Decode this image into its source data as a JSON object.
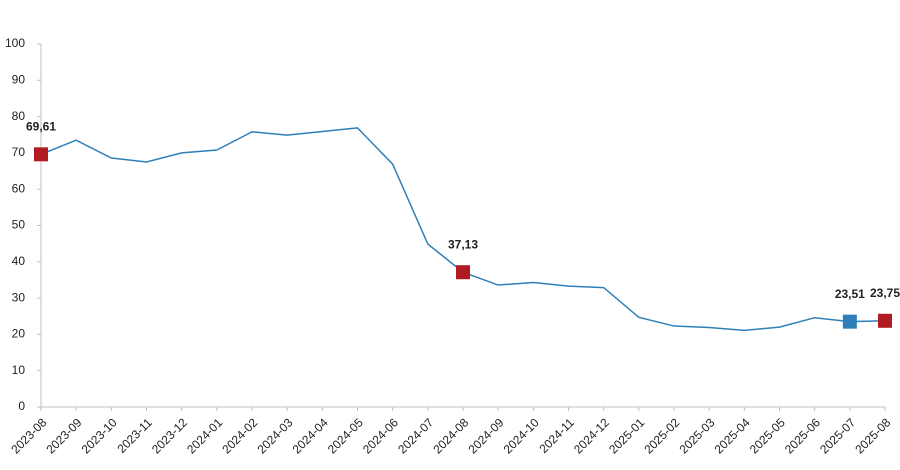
{
  "chart_data": {
    "type": "line",
    "categories": [
      "2023-08",
      "2023-09",
      "2023-10",
      "2023-11",
      "2023-12",
      "2024-01",
      "2024-02",
      "2024-03",
      "2024-04",
      "2024-05",
      "2024-06",
      "2024-07",
      "2024-08",
      "2024-09",
      "2024-10",
      "2024-11",
      "2024-12",
      "2025-01",
      "2025-02",
      "2025-03",
      "2025-04",
      "2025-05",
      "2025-06",
      "2025-07",
      "2025-08"
    ],
    "series": [
      {
        "color": "#2e7fb8",
        "values": [
          69.61,
          73.5,
          68.6,
          67.5,
          70.0,
          70.8,
          75.8,
          74.9,
          75.9,
          76.9,
          66.9,
          44.9,
          37.13,
          33.6,
          34.3,
          33.3,
          32.9,
          24.7,
          22.3,
          21.9,
          21.1,
          22.0,
          24.6,
          23.51,
          23.75
        ],
        "value_labels": [
          "69,61",
          null,
          null,
          null,
          null,
          null,
          null,
          null,
          null,
          null,
          null,
          null,
          "37,13",
          null,
          null,
          null,
          null,
          null,
          null,
          null,
          null,
          null,
          null,
          "23,51",
          "23,75"
        ],
        "marker_colors": [
          "#b01c22",
          null,
          null,
          null,
          null,
          null,
          null,
          null,
          null,
          null,
          null,
          null,
          "#b01c22",
          null,
          null,
          null,
          null,
          null,
          null,
          null,
          null,
          null,
          null,
          "#2e7fb8",
          "#b01c22"
        ]
      }
    ],
    "ylim": [
      0,
      100
    ],
    "yticks": [
      0,
      10,
      20,
      30,
      40,
      50,
      60,
      70,
      80,
      90,
      100
    ],
    "grid": false
  }
}
